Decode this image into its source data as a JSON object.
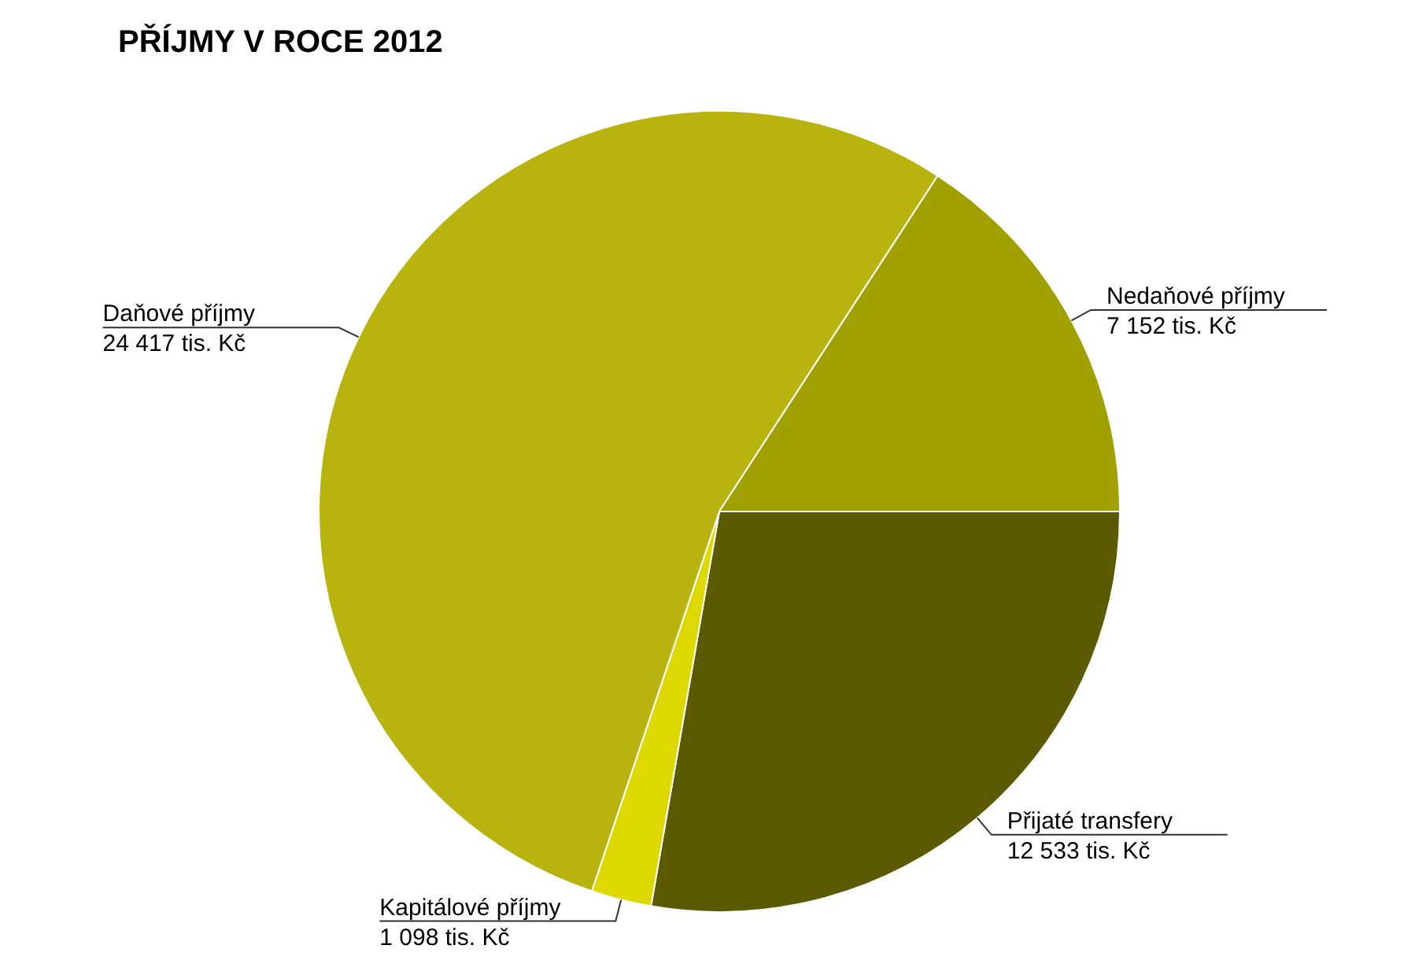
{
  "chart_data": {
    "type": "pie",
    "title": "PŘÍJMY V ROCE 2012",
    "categories": [
      "Přijaté transfery",
      "Kapitálové příjmy",
      "Daňové příjmy",
      "Nedaňové příjmy"
    ],
    "values": [
      12533,
      1098,
      24417,
      7152
    ],
    "value_labels": [
      "12 533 tis. Kč",
      "1 098 tis. Kč",
      "24 417 tis. Kč",
      "7 152 tis. Kč"
    ],
    "colors": [
      "#5c5a00",
      "#dcd800",
      "#b8b30e",
      "#a0a000"
    ],
    "legend": false
  }
}
